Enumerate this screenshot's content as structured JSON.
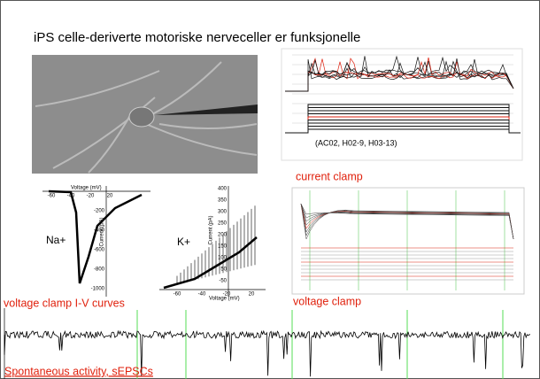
{
  "slide": {
    "title": "iPS celle-deriverte motoriske nerveceller er funksjonelle",
    "cell_lines": "(AC02, H02-9, H03-13)",
    "captions": {
      "current_clamp": "current clamp",
      "iv_curves": "voltage clamp I-V curves",
      "voltage_clamp": "voltage clamp",
      "spontaneous": "Spontaneous activity, sEPSCs"
    },
    "iv_plot": {
      "na_label": "Na+",
      "k_label": "K+",
      "na_x_label": "Voltage (mV)",
      "na_y_label": "Current (pA)",
      "k_x_label": "Voltage (mV)",
      "k_y_label": "Current (pA)",
      "na_x_ticks": [
        "-60",
        "-40",
        "-20",
        "20"
      ],
      "na_y_ticks": [
        "-200",
        "-400",
        "-600",
        "-800",
        "-1000"
      ],
      "k_x_ticks": [
        "-60",
        "-40",
        "-20",
        "20"
      ],
      "k_y_ticks": [
        "400",
        "350",
        "300",
        "250",
        "200",
        "150",
        "100",
        "50",
        "-50"
      ]
    }
  }
}
